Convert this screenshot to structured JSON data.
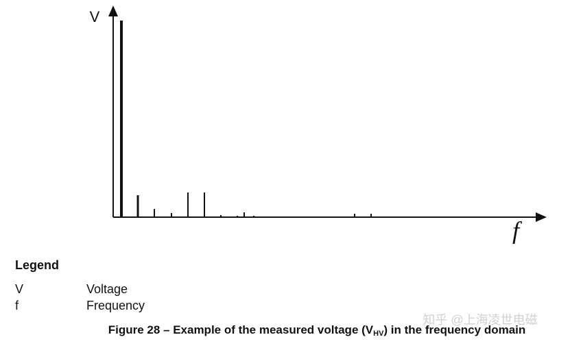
{
  "chart_data": {
    "type": "bar",
    "y_label": "V",
    "x_label": "f",
    "x": [
      12,
      36,
      60,
      85,
      109,
      133,
      157,
      181,
      191,
      205,
      230,
      254,
      278,
      302,
      327,
      352,
      376,
      400,
      424
    ],
    "values": [
      287,
      32,
      12,
      6,
      36,
      36,
      3,
      2,
      7,
      2,
      1,
      1,
      1,
      1,
      1,
      5,
      5,
      1,
      1
    ],
    "color": "#111111",
    "xlim": [
      0,
      630
    ],
    "ylim": [
      0,
      300
    ]
  },
  "legend": {
    "title": "Legend",
    "entries": [
      {
        "symbol": "V",
        "text": "Voltage"
      },
      {
        "symbol": "f",
        "text": "Frequency"
      }
    ]
  },
  "caption": {
    "before": "Figure 28 – Example of the measured voltage (V",
    "subscript": "HV",
    "after": ") in the frequency domain"
  },
  "watermark": "知乎 @上海凌世电磁"
}
